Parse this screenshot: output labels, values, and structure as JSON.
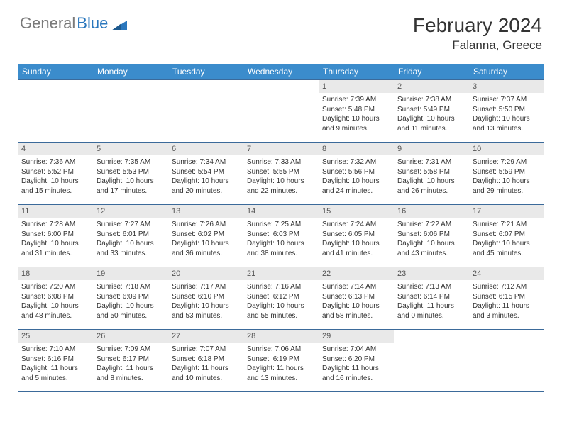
{
  "logo": {
    "part1": "General",
    "part2": "Blue"
  },
  "title": "February 2024",
  "location": "Falanna, Greece",
  "colors": {
    "header_bg": "#3b8ccc",
    "border": "#3b6a9a",
    "daynum_bg": "#e9e9e9",
    "text": "#333333",
    "logo_gray": "#7a7a7a",
    "logo_blue": "#2a77bd"
  },
  "weekdays": [
    "Sunday",
    "Monday",
    "Tuesday",
    "Wednesday",
    "Thursday",
    "Friday",
    "Saturday"
  ],
  "weeks": [
    [
      null,
      null,
      null,
      null,
      {
        "n": "1",
        "sr": "7:39 AM",
        "ss": "5:48 PM",
        "dl": "10 hours and 9 minutes."
      },
      {
        "n": "2",
        "sr": "7:38 AM",
        "ss": "5:49 PM",
        "dl": "10 hours and 11 minutes."
      },
      {
        "n": "3",
        "sr": "7:37 AM",
        "ss": "5:50 PM",
        "dl": "10 hours and 13 minutes."
      }
    ],
    [
      {
        "n": "4",
        "sr": "7:36 AM",
        "ss": "5:52 PM",
        "dl": "10 hours and 15 minutes."
      },
      {
        "n": "5",
        "sr": "7:35 AM",
        "ss": "5:53 PM",
        "dl": "10 hours and 17 minutes."
      },
      {
        "n": "6",
        "sr": "7:34 AM",
        "ss": "5:54 PM",
        "dl": "10 hours and 20 minutes."
      },
      {
        "n": "7",
        "sr": "7:33 AM",
        "ss": "5:55 PM",
        "dl": "10 hours and 22 minutes."
      },
      {
        "n": "8",
        "sr": "7:32 AM",
        "ss": "5:56 PM",
        "dl": "10 hours and 24 minutes."
      },
      {
        "n": "9",
        "sr": "7:31 AM",
        "ss": "5:58 PM",
        "dl": "10 hours and 26 minutes."
      },
      {
        "n": "10",
        "sr": "7:29 AM",
        "ss": "5:59 PM",
        "dl": "10 hours and 29 minutes."
      }
    ],
    [
      {
        "n": "11",
        "sr": "7:28 AM",
        "ss": "6:00 PM",
        "dl": "10 hours and 31 minutes."
      },
      {
        "n": "12",
        "sr": "7:27 AM",
        "ss": "6:01 PM",
        "dl": "10 hours and 33 minutes."
      },
      {
        "n": "13",
        "sr": "7:26 AM",
        "ss": "6:02 PM",
        "dl": "10 hours and 36 minutes."
      },
      {
        "n": "14",
        "sr": "7:25 AM",
        "ss": "6:03 PM",
        "dl": "10 hours and 38 minutes."
      },
      {
        "n": "15",
        "sr": "7:24 AM",
        "ss": "6:05 PM",
        "dl": "10 hours and 41 minutes."
      },
      {
        "n": "16",
        "sr": "7:22 AM",
        "ss": "6:06 PM",
        "dl": "10 hours and 43 minutes."
      },
      {
        "n": "17",
        "sr": "7:21 AM",
        "ss": "6:07 PM",
        "dl": "10 hours and 45 minutes."
      }
    ],
    [
      {
        "n": "18",
        "sr": "7:20 AM",
        "ss": "6:08 PM",
        "dl": "10 hours and 48 minutes."
      },
      {
        "n": "19",
        "sr": "7:18 AM",
        "ss": "6:09 PM",
        "dl": "10 hours and 50 minutes."
      },
      {
        "n": "20",
        "sr": "7:17 AM",
        "ss": "6:10 PM",
        "dl": "10 hours and 53 minutes."
      },
      {
        "n": "21",
        "sr": "7:16 AM",
        "ss": "6:12 PM",
        "dl": "10 hours and 55 minutes."
      },
      {
        "n": "22",
        "sr": "7:14 AM",
        "ss": "6:13 PM",
        "dl": "10 hours and 58 minutes."
      },
      {
        "n": "23",
        "sr": "7:13 AM",
        "ss": "6:14 PM",
        "dl": "11 hours and 0 minutes."
      },
      {
        "n": "24",
        "sr": "7:12 AM",
        "ss": "6:15 PM",
        "dl": "11 hours and 3 minutes."
      }
    ],
    [
      {
        "n": "25",
        "sr": "7:10 AM",
        "ss": "6:16 PM",
        "dl": "11 hours and 5 minutes."
      },
      {
        "n": "26",
        "sr": "7:09 AM",
        "ss": "6:17 PM",
        "dl": "11 hours and 8 minutes."
      },
      {
        "n": "27",
        "sr": "7:07 AM",
        "ss": "6:18 PM",
        "dl": "11 hours and 10 minutes."
      },
      {
        "n": "28",
        "sr": "7:06 AM",
        "ss": "6:19 PM",
        "dl": "11 hours and 13 minutes."
      },
      {
        "n": "29",
        "sr": "7:04 AM",
        "ss": "6:20 PM",
        "dl": "11 hours and 16 minutes."
      },
      null,
      null
    ]
  ],
  "labels": {
    "sunrise": "Sunrise:",
    "sunset": "Sunset:",
    "daylight": "Daylight:"
  }
}
